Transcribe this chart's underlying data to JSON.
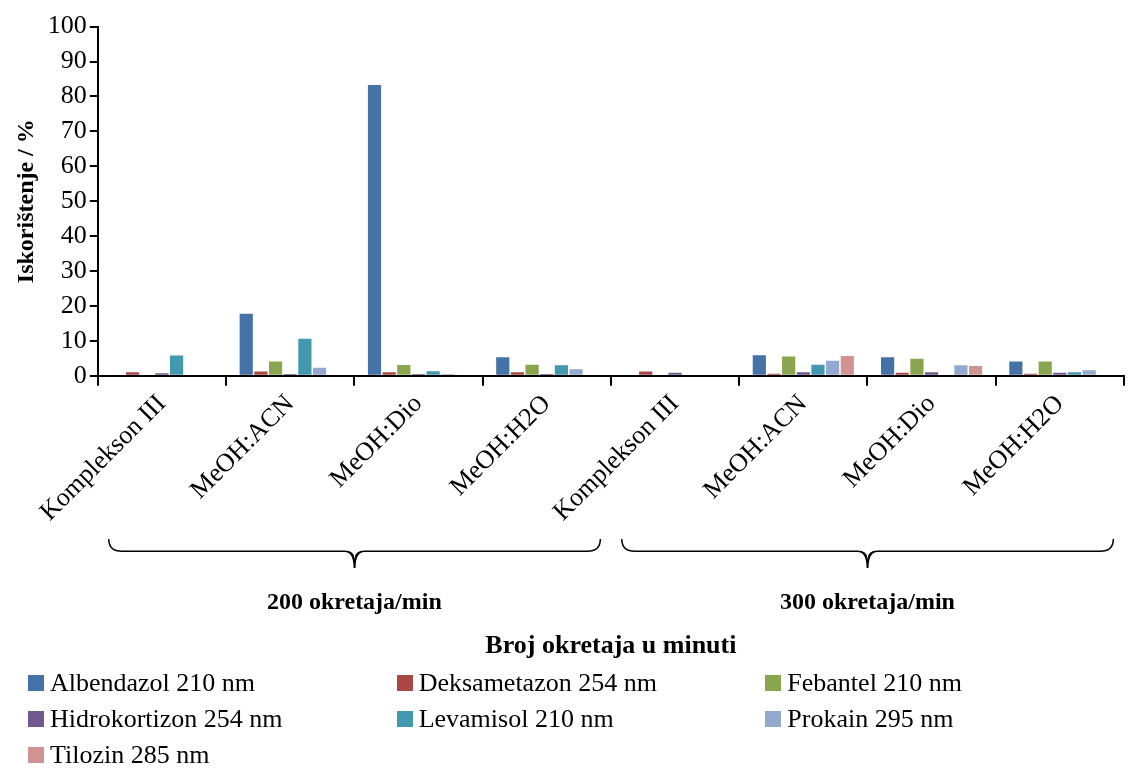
{
  "chart_data": {
    "type": "bar",
    "xlabel": "Broj okretaja u minuti",
    "ylabel": "Iskorištenje / %",
    "categories": [
      "Komplekson III",
      "MeOH:ACN",
      "MeOH:Dio",
      "MeOH:H2O",
      "Komplekson III",
      "MeOH:ACN",
      "MeOH:Dio",
      "MeOH:H2O"
    ],
    "series": [
      {
        "name": "Albendazol 210 nm",
        "color": "#4572a7",
        "values": [
          0,
          17.8,
          83.3,
          5.3,
          0,
          5.9,
          5.3,
          4.1
        ]
      },
      {
        "name": "Deksametazon 254 nm",
        "color": "#aa4643",
        "values": [
          1.0,
          1.2,
          1.0,
          1.0,
          1.2,
          0.6,
          0.9,
          0.6
        ]
      },
      {
        "name": "Febantel 210 nm",
        "color": "#89a54e",
        "values": [
          0,
          4.1,
          3.1,
          3.2,
          0,
          5.5,
          4.9,
          4.1
        ]
      },
      {
        "name": "Hidrokortizon 254 nm",
        "color": "#71588f",
        "values": [
          0.7,
          0.5,
          0.5,
          0.5,
          0.9,
          1.0,
          1.0,
          0.9
        ]
      },
      {
        "name": "Levamisol 210 nm",
        "color": "#4198af",
        "values": [
          5.8,
          10.6,
          1.3,
          3.0,
          0,
          3.2,
          0,
          1.0
        ]
      },
      {
        "name": "Prokain 295 nm",
        "color": "#93a9cf",
        "values": [
          0,
          2.3,
          0.5,
          1.9,
          0,
          4.3,
          3.0,
          1.6
        ]
      },
      {
        "name": "Tilozin 285 nm",
        "color": "#d19392",
        "values": [
          0,
          0,
          0,
          0,
          0,
          5.7,
          2.8,
          0
        ]
      }
    ],
    "annotations": [
      "200 okretaja/min",
      "300 okretaja/min"
    ],
    "ylim": [
      0,
      100
    ],
    "yticks": [
      0,
      10,
      20,
      30,
      40,
      50,
      60,
      70,
      80,
      90,
      100
    ],
    "grid": false,
    "legend": "bottom"
  }
}
